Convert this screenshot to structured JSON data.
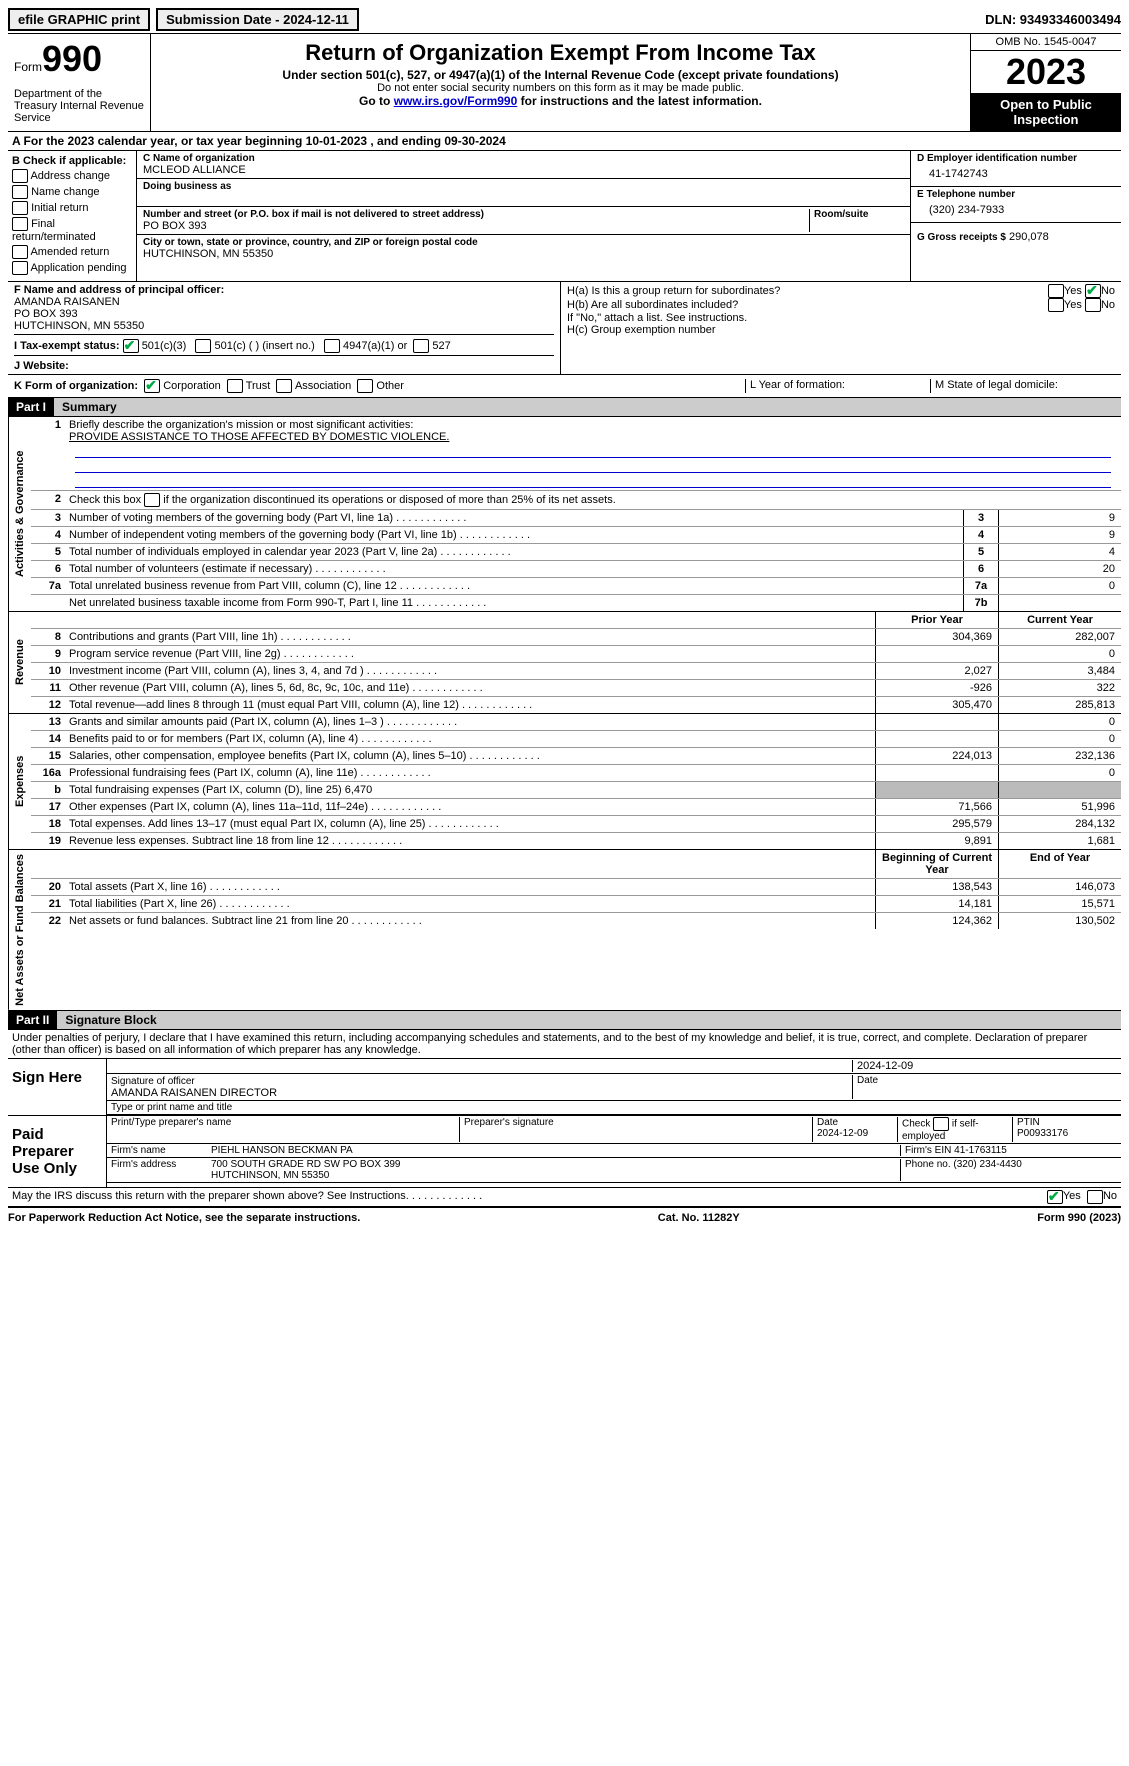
{
  "topbar": {
    "efile": "efile GRAPHIC print",
    "submission": "Submission Date - 2024-12-11",
    "dln": "DLN: 93493346003494"
  },
  "header": {
    "form_label": "Form",
    "form_num": "990",
    "title": "Return of Organization Exempt From Income Tax",
    "subtitle": "Under section 501(c), 527, or 4947(a)(1) of the Internal Revenue Code (except private foundations)",
    "sub2": "Do not enter social security numbers on this form as it may be made public.",
    "sub3_pre": "Go to ",
    "sub3_link": "www.irs.gov/Form990",
    "sub3_post": " for instructions and the latest information.",
    "dept": "Department of the Treasury Internal Revenue Service",
    "omb": "OMB No. 1545-0047",
    "year": "2023",
    "open": "Open to Public Inspection"
  },
  "sectionA": "A For the 2023 calendar year, or tax year beginning 10-01-2023   , and ending 09-30-2024",
  "B": {
    "label": "B Check if applicable:",
    "items": [
      "Address change",
      "Name change",
      "Initial return",
      "Final return/terminated",
      "Amended return",
      "Application pending"
    ]
  },
  "C": {
    "name_lbl": "C Name of organization",
    "name": "MCLEOD ALLIANCE",
    "dba": "Doing business as",
    "street_lbl": "Number and street (or P.O. box if mail is not delivered to street address)",
    "room_lbl": "Room/suite",
    "street": "PO BOX 393",
    "city_lbl": "City or town, state or province, country, and ZIP or foreign postal code",
    "city": "HUTCHINSON, MN  55350"
  },
  "D": {
    "lbl": "D Employer identification number",
    "val": "41-1742743"
  },
  "E": {
    "lbl": "E Telephone number",
    "val": "(320) 234-7933"
  },
  "G": {
    "lbl": "G Gross receipts $",
    "val": "290,078"
  },
  "F": {
    "lbl": "F  Name and address of principal officer:",
    "name": "AMANDA RAISANEN",
    "addr1": "PO BOX 393",
    "addr2": "HUTCHINSON, MN  55350"
  },
  "H": {
    "a": "H(a)  Is this a group return for subordinates?",
    "b": "H(b)  Are all subordinates included?",
    "b_note": "If \"No,\" attach a list. See instructions.",
    "c": "H(c)  Group exemption number",
    "yes": "Yes",
    "no": "No"
  },
  "I": {
    "lbl": "I  Tax-exempt status:",
    "opt1": "501(c)(3)",
    "opt2": "501(c) (  ) (insert no.)",
    "opt3": "4947(a)(1) or",
    "opt4": "527"
  },
  "J": "J  Website:",
  "K": {
    "lbl": "K Form of organization:",
    "opts": [
      "Corporation",
      "Trust",
      "Association",
      "Other"
    ],
    "L": "L Year of formation:",
    "M": "M State of legal domicile:"
  },
  "part1": {
    "hdr": "Part I",
    "title": "Summary",
    "line1_lbl": "Briefly describe the organization's mission or most significant activities:",
    "line1_val": "PROVIDE ASSISTANCE TO THOSE AFFECTED BY DOMESTIC VIOLENCE.",
    "line2": "Check this box      if the organization discontinued its operations or disposed of more than 25% of its net assets.",
    "governance": [
      {
        "n": "3",
        "d": "Number of voting members of the governing body (Part VI, line 1a)",
        "b": "3",
        "v": "9"
      },
      {
        "n": "4",
        "d": "Number of independent voting members of the governing body (Part VI, line 1b)",
        "b": "4",
        "v": "9"
      },
      {
        "n": "5",
        "d": "Total number of individuals employed in calendar year 2023 (Part V, line 2a)",
        "b": "5",
        "v": "4"
      },
      {
        "n": "6",
        "d": "Total number of volunteers (estimate if necessary)",
        "b": "6",
        "v": "20"
      },
      {
        "n": "7a",
        "d": "Total unrelated business revenue from Part VIII, column (C), line 12",
        "b": "7a",
        "v": "0"
      },
      {
        "n": "",
        "d": "Net unrelated business taxable income from Form 990-T, Part I, line 11",
        "b": "7b",
        "v": ""
      }
    ],
    "col_prior": "Prior Year",
    "col_current": "Current Year",
    "revenue": [
      {
        "n": "8",
        "d": "Contributions and grants (Part VIII, line 1h)",
        "p": "304,369",
        "c": "282,007"
      },
      {
        "n": "9",
        "d": "Program service revenue (Part VIII, line 2g)",
        "p": "",
        "c": "0"
      },
      {
        "n": "10",
        "d": "Investment income (Part VIII, column (A), lines 3, 4, and 7d )",
        "p": "2,027",
        "c": "3,484"
      },
      {
        "n": "11",
        "d": "Other revenue (Part VIII, column (A), lines 5, 6d, 8c, 9c, 10c, and 11e)",
        "p": "-926",
        "c": "322"
      },
      {
        "n": "12",
        "d": "Total revenue—add lines 8 through 11 (must equal Part VIII, column (A), line 12)",
        "p": "305,470",
        "c": "285,813"
      }
    ],
    "expenses": [
      {
        "n": "13",
        "d": "Grants and similar amounts paid (Part IX, column (A), lines 1–3 )",
        "p": "",
        "c": "0"
      },
      {
        "n": "14",
        "d": "Benefits paid to or for members (Part IX, column (A), line 4)",
        "p": "",
        "c": "0"
      },
      {
        "n": "15",
        "d": "Salaries, other compensation, employee benefits (Part IX, column (A), lines 5–10)",
        "p": "224,013",
        "c": "232,136"
      },
      {
        "n": "16a",
        "d": "Professional fundraising fees (Part IX, column (A), line 11e)",
        "p": "",
        "c": "0"
      },
      {
        "n": "b",
        "d": "Total fundraising expenses (Part IX, column (D), line 25) 6,470",
        "p": "shade",
        "c": "shade"
      },
      {
        "n": "17",
        "d": "Other expenses (Part IX, column (A), lines 11a–11d, 11f–24e)",
        "p": "71,566",
        "c": "51,996"
      },
      {
        "n": "18",
        "d": "Total expenses. Add lines 13–17 (must equal Part IX, column (A), line 25)",
        "p": "295,579",
        "c": "284,132"
      },
      {
        "n": "19",
        "d": "Revenue less expenses. Subtract line 18 from line 12",
        "p": "9,891",
        "c": "1,681"
      }
    ],
    "col_begin": "Beginning of Current Year",
    "col_end": "End of Year",
    "net": [
      {
        "n": "20",
        "d": "Total assets (Part X, line 16)",
        "p": "138,543",
        "c": "146,073"
      },
      {
        "n": "21",
        "d": "Total liabilities (Part X, line 26)",
        "p": "14,181",
        "c": "15,571"
      },
      {
        "n": "22",
        "d": "Net assets or fund balances. Subtract line 21 from line 20",
        "p": "124,362",
        "c": "130,502"
      }
    ],
    "vlabels": {
      "gov": "Activities & Governance",
      "rev": "Revenue",
      "exp": "Expenses",
      "net": "Net Assets or Fund Balances"
    }
  },
  "part2": {
    "hdr": "Part II",
    "title": "Signature Block",
    "decl": "Under penalties of perjury, I declare that I have examined this return, including accompanying schedules and statements, and to the best of my knowledge and belief, it is true, correct, and complete. Declaration of preparer (other than officer) is based on all information of which preparer has any knowledge.",
    "sign_here": "Sign Here",
    "sig_officer": "Signature of officer",
    "officer_name": "AMANDA RAISANEN  DIRECTOR",
    "type_name": "Type or print name and title",
    "date": "Date",
    "date_val": "2024-12-09",
    "paid": "Paid Preparer Use Only",
    "prep_name_lbl": "Print/Type preparer's name",
    "prep_sig_lbl": "Preparer's signature",
    "prep_date": "2024-12-09",
    "self_emp": "Check       if self-employed",
    "ptin_lbl": "PTIN",
    "ptin": "P00933176",
    "firm_name_lbl": "Firm's name",
    "firm_name": "PIEHL HANSON BECKMAN PA",
    "firm_ein_lbl": "Firm's EIN",
    "firm_ein": "41-1763115",
    "firm_addr_lbl": "Firm's address",
    "firm_addr1": "700 SOUTH GRADE RD SW PO BOX 399",
    "firm_addr2": "HUTCHINSON, MN  55350",
    "phone_lbl": "Phone no.",
    "phone": "(320) 234-4430",
    "discuss": "May the IRS discuss this return with the preparer shown above? See Instructions.",
    "yes": "Yes",
    "no": "No"
  },
  "footer": {
    "left": "For Paperwork Reduction Act Notice, see the separate instructions.",
    "mid": "Cat. No. 11282Y",
    "right": "Form 990 (2023)"
  }
}
